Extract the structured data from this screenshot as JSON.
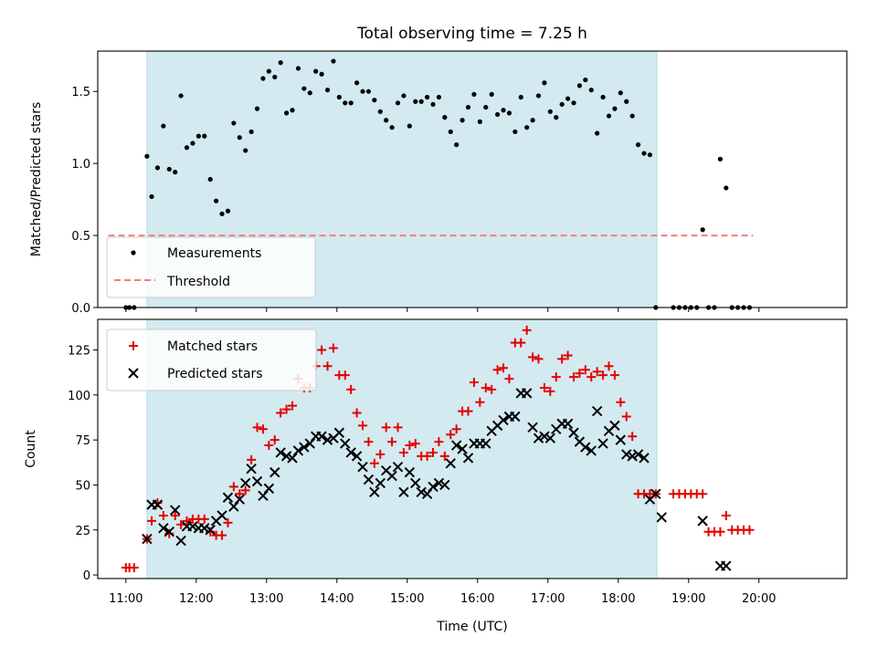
{
  "title": "Total observing time = 7.25 h",
  "colors": {
    "shade": "#d3eaf0",
    "shade_edge": "#b8dce6",
    "measurement": "#000000",
    "threshold": "#f08080",
    "matched": "#e60000",
    "predicted": "#000000"
  },
  "chart_data": [
    {
      "type": "scatter",
      "name": "ratio-panel",
      "ylabel": "Matched/Predicted stars",
      "xlabel": "",
      "xlim": [
        10.6,
        21.25
      ],
      "ylim": [
        0,
        1.78
      ],
      "yticks": [
        0.0,
        0.5,
        1.0,
        1.5
      ],
      "ytick_labels": [
        "0.0",
        "0.5",
        "1.0",
        "1.5"
      ],
      "observing_span": [
        "11:18",
        "18:33"
      ],
      "threshold": 0.5,
      "threshold_span": [
        "10:45",
        "19:55"
      ],
      "legend": {
        "placement": "lower-left",
        "entries": [
          "Measurements",
          "Threshold"
        ]
      },
      "series": [
        {
          "name": "Measurements",
          "x": [
            "11:00",
            "11:03",
            "11:07",
            "11:18",
            "11:22",
            "11:27",
            "11:32",
            "11:37",
            "11:42",
            "11:47",
            "11:52",
            "11:57",
            "12:02",
            "12:07",
            "12:12",
            "12:17",
            "12:22",
            "12:27",
            "12:32",
            "12:37",
            "12:42",
            "12:47",
            "12:52",
            "12:57",
            "13:02",
            "13:07",
            "13:12",
            "13:17",
            "13:22",
            "13:27",
            "13:32",
            "13:37",
            "13:42",
            "13:47",
            "13:52",
            "13:57",
            "14:02",
            "14:07",
            "14:12",
            "14:17",
            "14:22",
            "14:27",
            "14:32",
            "14:37",
            "14:42",
            "14:47",
            "14:52",
            "14:57",
            "15:02",
            "15:07",
            "15:12",
            "15:17",
            "15:22",
            "15:27",
            "15:32",
            "15:37",
            "15:42",
            "15:47",
            "15:52",
            "15:57",
            "16:02",
            "16:07",
            "16:12",
            "16:17",
            "16:22",
            "16:27",
            "16:32",
            "16:37",
            "16:42",
            "16:47",
            "16:52",
            "16:57",
            "17:02",
            "17:07",
            "17:12",
            "17:17",
            "17:22",
            "17:27",
            "17:32",
            "17:37",
            "17:42",
            "17:47",
            "17:52",
            "17:57",
            "18:02",
            "18:07",
            "18:12",
            "18:17",
            "18:22",
            "18:27",
            "18:32",
            "18:47",
            "18:52",
            "18:57",
            "19:02",
            "19:07",
            "19:12",
            "19:17",
            "19:22",
            "19:27",
            "19:32",
            "19:37",
            "19:42",
            "19:47",
            "19:52"
          ],
          "y": [
            0,
            0,
            0,
            1.05,
            0.77,
            0.97,
            1.26,
            0.96,
            0.94,
            1.47,
            1.11,
            1.14,
            1.19,
            1.19,
            0.89,
            0.74,
            0.65,
            0.67,
            1.28,
            1.18,
            1.09,
            1.22,
            1.38,
            1.59,
            1.64,
            1.6,
            1.7,
            1.35,
            1.37,
            1.66,
            1.52,
            1.49,
            1.64,
            1.62,
            1.51,
            1.71,
            1.46,
            1.42,
            1.42,
            1.56,
            1.5,
            1.5,
            1.44,
            1.36,
            1.3,
            1.25,
            1.42,
            1.47,
            1.26,
            1.43,
            1.43,
            1.46,
            1.41,
            1.46,
            1.32,
            1.22,
            1.13,
            1.3,
            1.39,
            1.48,
            1.29,
            1.39,
            1.48,
            1.34,
            1.37,
            1.35,
            1.22,
            1.46,
            1.25,
            1.3,
            1.47,
            1.56,
            1.36,
            1.32,
            1.41,
            1.45,
            1.42,
            1.54,
            1.58,
            1.51,
            1.21,
            1.46,
            1.33,
            1.38,
            1.49,
            1.43,
            1.33,
            1.13,
            1.07,
            1.06,
            0,
            0,
            0,
            0,
            0,
            0,
            0.54,
            0,
            0,
            1.03,
            0.83,
            0,
            0,
            0,
            0
          ]
        }
      ]
    },
    {
      "type": "scatter",
      "name": "count-panel",
      "ylabel": "Count",
      "xlabel": "Time (UTC)",
      "xlim": [
        10.6,
        21.25
      ],
      "ylim": [
        -2,
        142
      ],
      "yticks": [
        0,
        25,
        50,
        75,
        100,
        125
      ],
      "ytick_labels": [
        "0",
        "25",
        "50",
        "75",
        "100",
        "125"
      ],
      "xticks": [
        11,
        12,
        13,
        14,
        15,
        16,
        17,
        18,
        19,
        20
      ],
      "xtick_labels": [
        "11:00",
        "12:00",
        "13:00",
        "14:00",
        "15:00",
        "16:00",
        "17:00",
        "18:00",
        "19:00",
        "20:00"
      ],
      "observing_span": [
        "11:18",
        "18:33"
      ],
      "legend": {
        "placement": "upper-left",
        "entries": [
          "Matched stars",
          "Predicted stars"
        ]
      },
      "series": [
        {
          "name": "Matched stars",
          "marker": "+",
          "x": [
            "11:00",
            "11:03",
            "11:07",
            "11:18",
            "11:22",
            "11:27",
            "11:32",
            "11:37",
            "11:42",
            "11:47",
            "11:52",
            "11:57",
            "12:02",
            "12:07",
            "12:12",
            "12:17",
            "12:22",
            "12:27",
            "12:32",
            "12:37",
            "12:42",
            "12:47",
            "12:52",
            "12:57",
            "13:02",
            "13:07",
            "13:12",
            "13:17",
            "13:22",
            "13:27",
            "13:32",
            "13:37",
            "13:42",
            "13:47",
            "13:52",
            "13:57",
            "14:02",
            "14:07",
            "14:12",
            "14:17",
            "14:22",
            "14:27",
            "14:32",
            "14:37",
            "14:42",
            "14:47",
            "14:52",
            "14:57",
            "15:02",
            "15:07",
            "15:12",
            "15:17",
            "15:22",
            "15:27",
            "15:32",
            "15:37",
            "15:42",
            "15:47",
            "15:52",
            "15:57",
            "16:02",
            "16:07",
            "16:12",
            "16:17",
            "16:22",
            "16:27",
            "16:32",
            "16:37",
            "16:42",
            "16:47",
            "16:52",
            "16:57",
            "17:02",
            "17:07",
            "17:12",
            "17:17",
            "17:22",
            "17:27",
            "17:32",
            "17:37",
            "17:42",
            "17:47",
            "17:52",
            "17:57",
            "18:02",
            "18:07",
            "18:12",
            "18:17",
            "18:22",
            "18:27",
            "18:32",
            "18:47",
            "18:52",
            "18:57",
            "19:02",
            "19:07",
            "19:12",
            "19:17",
            "19:22",
            "19:27",
            "19:32",
            "19:37",
            "19:42",
            "19:47",
            "19:52"
          ],
          "y": [
            4,
            4,
            4,
            20,
            30,
            40,
            33,
            23,
            33,
            28,
            30,
            31,
            31,
            31,
            24,
            22,
            22,
            29,
            49,
            45,
            47,
            64,
            82,
            81,
            72,
            75,
            90,
            92,
            94,
            109,
            104,
            104,
            116,
            125,
            116,
            126,
            111,
            111,
            103,
            90,
            83,
            74,
            62,
            67,
            82,
            74,
            82,
            68,
            72,
            73,
            66,
            66,
            68,
            74,
            66,
            78,
            81,
            91,
            91,
            107,
            96,
            104,
            103,
            114,
            115,
            109,
            129,
            129,
            136,
            121,
            120,
            104,
            102,
            110,
            120,
            122,
            110,
            112,
            114,
            110,
            113,
            111,
            116,
            111,
            96,
            88,
            77,
            45,
            45,
            45,
            45,
            45,
            45,
            45,
            45,
            45,
            45,
            24,
            24,
            24,
            33,
            25,
            25,
            25,
            25
          ]
        },
        {
          "name": "Predicted stars",
          "marker": "x",
          "x": [
            "11:18",
            "11:22",
            "11:27",
            "11:32",
            "11:37",
            "11:42",
            "11:47",
            "11:52",
            "11:57",
            "12:02",
            "12:07",
            "12:12",
            "12:17",
            "12:22",
            "12:27",
            "12:32",
            "12:37",
            "12:42",
            "12:47",
            "12:52",
            "12:57",
            "13:02",
            "13:07",
            "13:12",
            "13:17",
            "13:22",
            "13:27",
            "13:32",
            "13:37",
            "13:42",
            "13:47",
            "13:52",
            "13:57",
            "14:02",
            "14:07",
            "14:12",
            "14:17",
            "14:22",
            "14:27",
            "14:32",
            "14:37",
            "14:42",
            "14:47",
            "14:52",
            "14:57",
            "15:02",
            "15:07",
            "15:12",
            "15:17",
            "15:22",
            "15:27",
            "15:32",
            "15:37",
            "15:42",
            "15:47",
            "15:52",
            "15:57",
            "16:02",
            "16:07",
            "16:12",
            "16:17",
            "16:22",
            "16:27",
            "16:32",
            "16:37",
            "16:42",
            "16:47",
            "16:52",
            "16:57",
            "17:02",
            "17:07",
            "17:12",
            "17:17",
            "17:22",
            "17:27",
            "17:32",
            "17:37",
            "17:42",
            "17:47",
            "17:52",
            "17:57",
            "18:02",
            "18:07",
            "18:12",
            "18:17",
            "18:22",
            "18:27",
            "18:32",
            "18:37",
            "19:12",
            "19:27",
            "19:32"
          ],
          "y": [
            20,
            39,
            39,
            26,
            24,
            36,
            19,
            27,
            27,
            26,
            26,
            25,
            30,
            33,
            43,
            38,
            42,
            51,
            59,
            52,
            44,
            48,
            57,
            68,
            66,
            65,
            69,
            71,
            73,
            77,
            77,
            75,
            76,
            79,
            73,
            68,
            66,
            60,
            53,
            46,
            51,
            58,
            55,
            60,
            46,
            57,
            51,
            46,
            45,
            49,
            51,
            50,
            62,
            72,
            70,
            65,
            73,
            73,
            73,
            80,
            83,
            86,
            88,
            88,
            101,
            101,
            82,
            76,
            77,
            76,
            81,
            84,
            84,
            79,
            74,
            71,
            69,
            91,
            73,
            80,
            83,
            75,
            67,
            66,
            67,
            65,
            42,
            45,
            32,
            30,
            5,
            5
          ]
        }
      ]
    }
  ]
}
